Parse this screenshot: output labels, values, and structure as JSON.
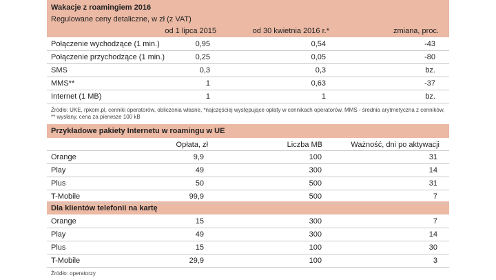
{
  "table1": {
    "title": "Wakacje z roamingiem 2016",
    "subtitle": "Regulowane ceny detaliczne, w zł (z VAT)",
    "columns": [
      "od 1 lipca 2015",
      "od 30 kwietnia 2016 r.*",
      "zmiana, proc."
    ],
    "rows": [
      [
        "Połączenie wychodzące (1 min.)",
        "0,95",
        "0,54",
        "-43"
      ],
      [
        "Połączenie przychodzące (1 min.)",
        "0,25",
        "0,05",
        "-80"
      ],
      [
        "SMS",
        "0,3",
        "0,3",
        "bz."
      ],
      [
        "MMS**",
        "1",
        "0,63",
        "-37"
      ],
      [
        "Internet (1 MB)",
        "1",
        "1",
        "bz."
      ]
    ],
    "notes": [
      "Źródło: UKE, rpkom.pl, cenniki operatorów, obliczenia własne, *najczęściej występujące opłaty w cennikach operatorów, MMS - średnia arytmetyczna z cenników,",
      "** wysłany, cena za pierwsze 100 kB"
    ]
  },
  "table2": {
    "title": "Przykładowe pakiety Internetu w roamingu w UE",
    "columns": [
      "Opłata, zł",
      "Liczba MB",
      "Ważność, dni po aktywacji"
    ],
    "rows": [
      [
        "Orange",
        "9,9",
        "100",
        "31"
      ],
      [
        "Play",
        "49",
        "300",
        "14"
      ],
      [
        "Plus",
        "50",
        "500",
        "31"
      ],
      [
        "T-Mobile",
        "99,9",
        "500",
        "7"
      ]
    ],
    "section_title": "Dla klientów telefonii na kartę",
    "section_rows": [
      [
        "Orange",
        "15",
        "300",
        "7"
      ],
      [
        "Play",
        "49",
        "300",
        "14"
      ],
      [
        "Plus",
        "15",
        "100",
        "30"
      ],
      [
        "T-Mobile",
        "29,9",
        "100",
        "3"
      ]
    ],
    "source": "Źródło: operatorzy"
  }
}
